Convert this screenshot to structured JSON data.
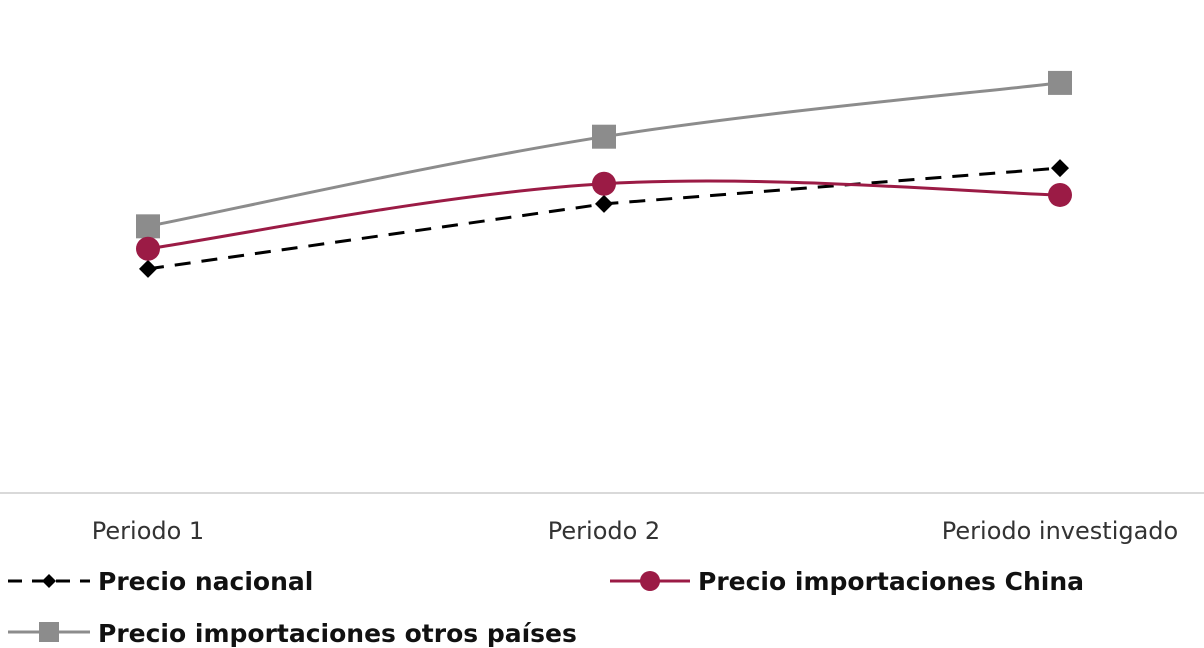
{
  "chart_data": {
    "type": "line",
    "categories": [
      "Periodo 1",
      "Periodo 2",
      "Periodo investigado"
    ],
    "series": [
      {
        "name": "Precio nacional",
        "values": [
          100,
          129,
          145
        ],
        "color": "#000000",
        "marker": "diamond",
        "dash": true
      },
      {
        "name": "Precio importaciones China",
        "values": [
          109,
          138,
          133
        ],
        "color": "#9b1b45",
        "marker": "circle",
        "dash": false
      },
      {
        "name": "Precio importaciones otros países",
        "values": [
          119,
          159,
          183
        ],
        "color": "#8c8c8c",
        "marker": "square",
        "dash": false
      }
    ],
    "ylim": [
      0,
      220
    ],
    "xlabel": "",
    "ylabel": "",
    "grid": false,
    "legend": "bottom"
  }
}
